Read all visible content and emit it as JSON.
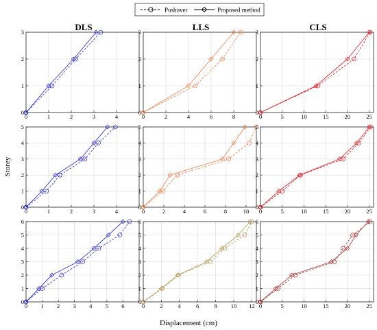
{
  "figure": {
    "ylabel": "Storey",
    "xlabel": "Displacement (cm)",
    "legend": {
      "placement": "top-center",
      "entries": [
        {
          "label": "Pushover",
          "style": "dashed-circle"
        },
        {
          "label": "Proposed method",
          "style": "solid-diamond"
        }
      ]
    },
    "columns": [
      "DLS",
      "LLS",
      "CLS"
    ],
    "colors": {
      "DLS": "#3a3acf",
      "LLS": "#ef8a5a",
      "CLS": "#e0303a",
      "LLS_alt": "#b8a060",
      "CLS_alt": "#b04040"
    }
  },
  "chart_data": [
    {
      "type": "line",
      "title": "DLS",
      "row": 0,
      "col": 0,
      "color": "#3a3acf",
      "xlim": [
        0,
        5
      ],
      "ylim": [
        0,
        3
      ],
      "xticks": [
        0,
        1,
        2,
        3,
        4
      ],
      "yticks": [
        0,
        1,
        2,
        3
      ],
      "series": [
        {
          "name": "Pushover",
          "x": [
            0,
            1.15,
            2.2,
            3.3
          ],
          "y": [
            0,
            1,
            2,
            3
          ]
        },
        {
          "name": "Proposed method",
          "x": [
            0,
            1.0,
            2.1,
            3.1
          ],
          "y": [
            0,
            1,
            2,
            3
          ]
        }
      ]
    },
    {
      "type": "line",
      "title": "LLS",
      "row": 0,
      "col": 1,
      "color": "#ef8a5a",
      "xlim": [
        0,
        10
      ],
      "ylim": [
        0,
        3
      ],
      "xticks": [
        0,
        2,
        4,
        6,
        8
      ],
      "yticks": [
        0,
        1,
        2,
        3
      ],
      "series": [
        {
          "name": "Pushover",
          "x": [
            0,
            4.6,
            7.0,
            8.6
          ],
          "y": [
            0,
            1,
            2,
            3
          ]
        },
        {
          "name": "Proposed method",
          "x": [
            0,
            4.0,
            6.0,
            8.0
          ],
          "y": [
            0,
            1,
            2,
            3
          ]
        }
      ]
    },
    {
      "type": "line",
      "title": "CLS",
      "row": 0,
      "col": 2,
      "color": "#e0303a",
      "xlim": [
        0,
        26
      ],
      "ylim": [
        0,
        3
      ],
      "xticks": [
        0,
        5,
        10,
        15,
        20,
        25
      ],
      "yticks": [
        0,
        1,
        2,
        3
      ],
      "series": [
        {
          "name": "Pushover",
          "x": [
            0,
            13.2,
            21.5,
            25.2
          ],
          "y": [
            0,
            1,
            2,
            3
          ]
        },
        {
          "name": "Proposed method",
          "x": [
            0,
            12.8,
            20.0,
            25.0
          ],
          "y": [
            0,
            1,
            2,
            3
          ]
        }
      ]
    },
    {
      "type": "line",
      "row": 1,
      "col": 0,
      "color": "#3a3acf",
      "xlim": [
        0,
        5
      ],
      "ylim": [
        0,
        5
      ],
      "xticks": [
        0,
        1,
        2,
        3,
        4
      ],
      "yticks": [
        0,
        1,
        2,
        3,
        4,
        5
      ],
      "series": [
        {
          "name": "Pushover",
          "x": [
            0,
            0.9,
            1.5,
            2.6,
            3.2,
            3.95
          ],
          "y": [
            0,
            1,
            2,
            3,
            4,
            5
          ]
        },
        {
          "name": "Proposed method",
          "x": [
            0,
            0.7,
            1.3,
            2.4,
            3.0,
            3.6
          ],
          "y": [
            0,
            1,
            2,
            3,
            4,
            5
          ]
        }
      ]
    },
    {
      "type": "line",
      "row": 1,
      "col": 1,
      "color": "#ef8a5a",
      "xlim": [
        0,
        11
      ],
      "ylim": [
        0,
        5
      ],
      "xticks": [
        0,
        2,
        4,
        6,
        8,
        10
      ],
      "yticks": [
        0,
        1,
        2,
        3,
        4,
        5
      ],
      "series": [
        {
          "name": "Pushover",
          "x": [
            0,
            1.9,
            3.3,
            8.3,
            10.3,
            11.0
          ],
          "y": [
            0,
            1,
            2,
            3,
            4,
            5
          ]
        },
        {
          "name": "Proposed method",
          "x": [
            0,
            1.6,
            2.6,
            7.7,
            8.8,
            9.9
          ],
          "y": [
            0,
            1,
            2,
            3,
            4,
            5
          ]
        }
      ]
    },
    {
      "type": "line",
      "row": 1,
      "col": 2,
      "color": "#e0303a",
      "xlim": [
        0,
        26
      ],
      "ylim": [
        0,
        5
      ],
      "xticks": [
        0,
        5,
        10,
        15,
        20,
        25
      ],
      "yticks": [
        0,
        1,
        2,
        3,
        4,
        5
      ],
      "series": [
        {
          "name": "Pushover",
          "x": [
            0,
            5.0,
            9.2,
            19.0,
            22.6,
            25.3
          ],
          "y": [
            0,
            1,
            2,
            3,
            4,
            5
          ]
        },
        {
          "name": "Proposed method",
          "x": [
            0,
            4.2,
            9.0,
            18.2,
            22.1,
            25.0
          ],
          "y": [
            0,
            1,
            2,
            3,
            4,
            5
          ]
        }
      ]
    },
    {
      "type": "line",
      "row": 2,
      "col": 0,
      "color": "#3a3acf",
      "xlim": [
        0,
        7
      ],
      "ylim": [
        0,
        6
      ],
      "xticks": [
        0,
        1,
        2,
        3,
        4,
        5,
        6
      ],
      "yticks": [
        0,
        1,
        2,
        3,
        4,
        5,
        6
      ],
      "series": [
        {
          "name": "Pushover",
          "x": [
            0,
            1.0,
            2.2,
            3.5,
            4.5,
            5.8,
            6.4
          ],
          "y": [
            0,
            1,
            2,
            3,
            4,
            5,
            6
          ]
        },
        {
          "name": "Proposed method",
          "x": [
            0,
            0.8,
            1.6,
            3.2,
            4.2,
            5.1,
            6.0
          ],
          "y": [
            0,
            1,
            2,
            3,
            4,
            5,
            6
          ]
        }
      ]
    },
    {
      "type": "line",
      "row": 2,
      "col": 1,
      "color": "#b8a060",
      "xlim": [
        0,
        12.5
      ],
      "ylim": [
        0,
        6
      ],
      "xticks": [
        0,
        2,
        4,
        6,
        8,
        10,
        12
      ],
      "yticks": [
        0,
        1,
        2,
        3,
        4,
        5,
        6
      ],
      "series": [
        {
          "name": "Pushover",
          "x": [
            0,
            2.1,
            3.9,
            7.4,
            9.0,
            11.2,
            12.0
          ],
          "y": [
            0,
            1,
            2,
            3,
            4,
            5,
            6
          ]
        },
        {
          "name": "Proposed method",
          "x": [
            0,
            2.0,
            3.8,
            7.0,
            8.7,
            10.5,
            11.8
          ],
          "y": [
            0,
            1,
            2,
            3,
            4,
            5,
            6
          ]
        }
      ]
    },
    {
      "type": "line",
      "row": 2,
      "col": 2,
      "color": "#b04040",
      "xlim": [
        0,
        26
      ],
      "ylim": [
        0,
        6
      ],
      "xticks": [
        0,
        5,
        10,
        15,
        20,
        25
      ],
      "yticks": [
        0,
        1,
        2,
        3,
        4,
        5,
        6
      ],
      "series": [
        {
          "name": "Pushover",
          "x": [
            0,
            4.0,
            8.0,
            17.0,
            19.0,
            21.2,
            25.2
          ],
          "y": [
            0,
            1,
            2,
            3,
            4,
            5,
            6
          ]
        },
        {
          "name": "Proposed method",
          "x": [
            0,
            3.5,
            7.2,
            16.3,
            20.0,
            22.0,
            24.8
          ],
          "y": [
            0,
            1,
            2,
            3,
            4,
            5,
            6
          ]
        }
      ]
    }
  ]
}
